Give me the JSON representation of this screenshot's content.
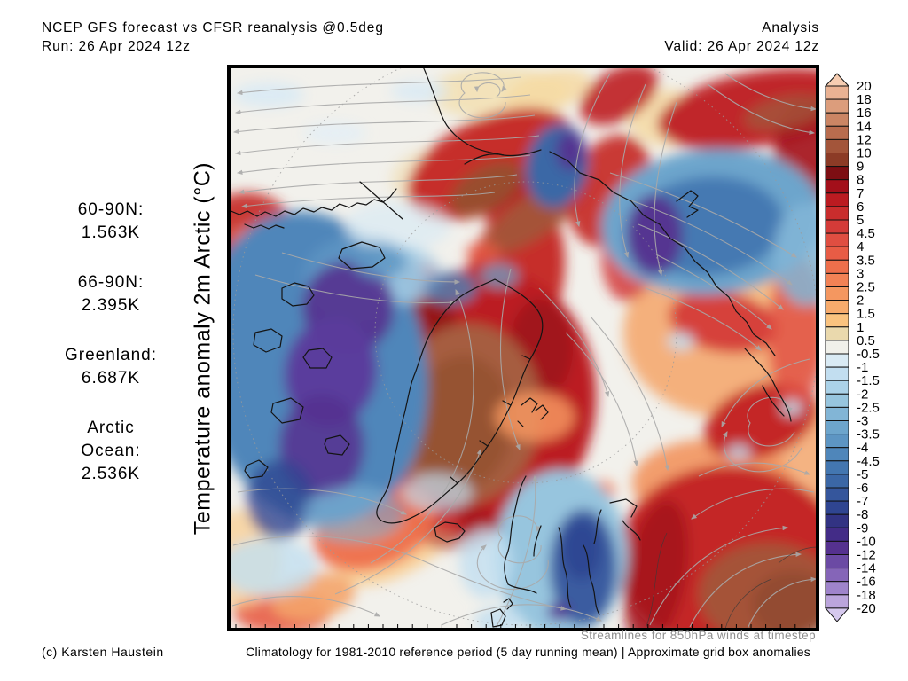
{
  "header": {
    "title": "NCEP GFS forecast vs CFSR reanalysis @0.5deg",
    "run": "Run: 26 Apr 2024 12z",
    "mode": "Analysis",
    "valid": "Valid: 26 Apr 2024 12z"
  },
  "axis_label": "Temperature anomaly 2m Arctic (°C)",
  "stats": {
    "items": [
      {
        "lines": [
          "60-90N:",
          "1.563K"
        ]
      },
      {
        "lines": [
          "66-90N:",
          "2.395K"
        ]
      },
      {
        "lines": [
          "Greenland:",
          "6.687K"
        ]
      },
      {
        "lines": [
          "Arctic",
          "Ocean:",
          "2.536K"
        ]
      }
    ]
  },
  "footer": {
    "streamlines_note": "Streamlines for 850hPa winds at timestep",
    "credit": "(c) Karsten Haustein",
    "climatology_note": "Climatology for 1981-2010 reference period (5 day running mean) | Approximate grid box anomalies"
  },
  "colorbar": {
    "labels": [
      "20",
      "18",
      "16",
      "14",
      "12",
      "10",
      "9",
      "8",
      "7",
      "6",
      "5",
      "4.5",
      "4",
      "3.5",
      "3",
      "2.5",
      "2",
      "1.5",
      "1",
      "0.5",
      "-0.5",
      "-1",
      "-1.5",
      "-2",
      "-2.5",
      "-3",
      "-3.5",
      "-4",
      "-4.5",
      "-5",
      "-6",
      "-7",
      "-8",
      "-9",
      "-10",
      "-12",
      "-14",
      "-16",
      "-18",
      "-20"
    ],
    "segment_colors": [
      "#eab293",
      "#dc9d7c",
      "#cb8564",
      "#b96c4e",
      "#a3553a",
      "#8c3b26",
      "#7d0e13",
      "#a30f1a",
      "#bb1b21",
      "#c92d2d",
      "#d43b38",
      "#e04e41",
      "#e85c45",
      "#ee6f4b",
      "#f28255",
      "#f49760",
      "#f7ab6c",
      "#fac37f",
      "#ead9ad",
      "#f0f0ea",
      "#d9eaf4",
      "#c2def0",
      "#abd2e8",
      "#97c5de",
      "#82b5d6",
      "#6da5cc",
      "#5d95c3",
      "#4f86ba",
      "#4376b0",
      "#3b67a6",
      "#35569c",
      "#2f4591",
      "#323383",
      "#432c87",
      "#55318f",
      "#6b4aa4",
      "#8565b8",
      "#9f84cb",
      "#bba5dc"
    ],
    "top_triangle_color": "#f6cdb2",
    "bottom_triangle_color": "#d6c9ee",
    "outline_color": "#111111"
  },
  "chart_data": {
    "type": "heatmap",
    "title": "Temperature anomaly 2m Arctic (°C)",
    "scale_values_degC": [
      20,
      18,
      16,
      14,
      12,
      10,
      9,
      8,
      7,
      6,
      5,
      4.5,
      4,
      3.5,
      3,
      2.5,
      2,
      1.5,
      1,
      0.5,
      -0.5,
      -1,
      -1.5,
      -2,
      -2.5,
      -3,
      -3.5,
      -4,
      -4.5,
      -5,
      -6,
      -7,
      -8,
      -9,
      -10,
      -12,
      -14,
      -16,
      -18,
      -20
    ],
    "region_mean_anomalies_K": {
      "60-90N": 1.563,
      "66-90N": 2.395,
      "Greenland": 6.687,
      "Arctic Ocean": 2.536
    }
  },
  "map": {
    "base_color": "#f2f1ec",
    "streamline_color": "#a9a9a9",
    "coast_color": "#141414",
    "blobs": [
      [
        305,
        30,
        80,
        30,
        0,
        "#f2dfae",
        0.8
      ],
      [
        245,
        128,
        62,
        38,
        0,
        "#f0dcae",
        0.6
      ],
      [
        360,
        28,
        50,
        22,
        -15,
        "#f6d9a2",
        0.85
      ],
      [
        495,
        58,
        45,
        32,
        0,
        "#f5d9a2",
        0.85
      ],
      [
        560,
        300,
        115,
        95,
        0,
        "#f4a870",
        0.9
      ],
      [
        612,
        240,
        58,
        38,
        0,
        "#f7c489",
        0.8
      ],
      [
        200,
        520,
        95,
        45,
        -35,
        "#f8cd92",
        0.9
      ],
      [
        60,
        615,
        55,
        25,
        0,
        "#e85c45",
        0.9
      ],
      [
        95,
        598,
        48,
        26,
        -10,
        "#f4a46a",
        0.9
      ],
      [
        15,
        555,
        45,
        55,
        0,
        "#f8cd92",
        0.75
      ],
      [
        648,
        450,
        40,
        80,
        0,
        "#f4a870",
        0.85
      ],
      [
        545,
        470,
        90,
        50,
        0,
        "#f2945e",
        0.9
      ],
      [
        300,
        470,
        40,
        45,
        0,
        "#f4a870",
        0.8
      ],
      [
        295,
        110,
        100,
        52,
        -25,
        "#c62f2a",
        1
      ],
      [
        345,
        152,
        60,
        33,
        -30,
        "#b51b20",
        0.9
      ],
      [
        440,
        32,
        48,
        28,
        -30,
        "#c0272a",
        0.95
      ],
      [
        597,
        48,
        115,
        42,
        -10,
        "#c0272a",
        1
      ],
      [
        655,
        95,
        40,
        60,
        0,
        "#a30f1a",
        0.9
      ],
      [
        628,
        52,
        48,
        18,
        -12,
        "#a3553a",
        0.85
      ],
      [
        320,
        250,
        55,
        100,
        15,
        "#c62f2a",
        1
      ],
      [
        350,
        165,
        75,
        24,
        -35,
        "#a3553a",
        0.95
      ],
      [
        290,
        138,
        45,
        24,
        -30,
        "#93512f",
        0.9
      ],
      [
        430,
        140,
        45,
        65,
        20,
        "#c62f2a",
        0.95
      ],
      [
        452,
        205,
        32,
        60,
        5,
        "#d43b38",
        0.85
      ],
      [
        282,
        378,
        132,
        152,
        8,
        "#bb1b21",
        1
      ],
      [
        215,
        298,
        42,
        58,
        0,
        "#7d0e13",
        0.6
      ],
      [
        352,
        318,
        36,
        56,
        0,
        "#8c1016",
        0.55
      ],
      [
        255,
        518,
        48,
        28,
        0,
        "#991015",
        0.5
      ],
      [
        268,
        392,
        84,
        102,
        5,
        "#a65d41",
        1
      ],
      [
        262,
        402,
        58,
        76,
        5,
        "#93512f",
        0.85
      ],
      [
        558,
        288,
        62,
        34,
        10,
        "#d43b38",
        0.95
      ],
      [
        600,
        400,
        66,
        40,
        -20,
        "#c42828",
        1
      ],
      [
        640,
        300,
        32,
        85,
        0,
        "#e04e41",
        0.8
      ],
      [
        565,
        555,
        128,
        105,
        0,
        "#c42828",
        1
      ],
      [
        482,
        572,
        34,
        85,
        10,
        "#a30f1a",
        0.85
      ],
      [
        608,
        595,
        78,
        58,
        0,
        "#a3553a",
        0.95
      ],
      [
        636,
        607,
        46,
        38,
        0,
        "#8f4a2f",
        0.85
      ],
      [
        165,
        520,
        72,
        45,
        -20,
        "#ee6f4b",
        0.95
      ],
      [
        175,
        500,
        25,
        17,
        0,
        "#e04e41",
        0.85
      ],
      [
        245,
        515,
        16,
        10,
        0,
        "#d43b38",
        0.85
      ],
      [
        20,
        190,
        55,
        48,
        0,
        "#c62f2a",
        0.95
      ],
      [
        6,
        330,
        26,
        45,
        0,
        "#c62f2a",
        0.8
      ],
      [
        120,
        205,
        26,
        17,
        0,
        "#e04e41",
        0.85
      ],
      [
        215,
        235,
        23,
        15,
        0,
        "#d43b38",
        0.8
      ],
      [
        287,
        210,
        20,
        13,
        0,
        "#e85c45",
        0.75
      ],
      [
        85,
        198,
        85,
        20,
        5,
        "#ee6f4b",
        0.85
      ],
      [
        420,
        478,
        16,
        11,
        0,
        "#f28255",
        0.9
      ],
      [
        345,
        395,
        45,
        28,
        0,
        "#f49760",
        0.85
      ],
      [
        95,
        340,
        128,
        178,
        -10,
        "#4f86ba",
        1
      ],
      [
        152,
        238,
        68,
        48,
        0,
        "#5d95c3",
        0.9
      ],
      [
        190,
        180,
        60,
        28,
        0,
        "#d9eaf4",
        0.7
      ],
      [
        200,
        235,
        40,
        32,
        0,
        "#abd2e8",
        0.75
      ],
      [
        135,
        272,
        52,
        52,
        -20,
        "#55318f",
        0.9
      ],
      [
        115,
        345,
        52,
        62,
        10,
        "#5b3a9b",
        0.95
      ],
      [
        105,
        428,
        48,
        58,
        0,
        "#55318f",
        0.85
      ],
      [
        58,
        488,
        38,
        45,
        0,
        "#2f4591",
        0.8
      ],
      [
        140,
        505,
        58,
        32,
        0,
        "#82b5d6",
        0.6
      ],
      [
        170,
        220,
        30,
        19,
        0,
        "#5d95c3",
        0.85
      ],
      [
        250,
        250,
        30,
        19,
        0,
        "#4f86ba",
        0.8
      ],
      [
        305,
        236,
        22,
        14,
        0,
        "#6da5cc",
        0.75
      ],
      [
        370,
        112,
        35,
        48,
        10,
        "#3b67a6",
        1
      ],
      [
        385,
        95,
        16,
        22,
        0,
        "#55318f",
        0.9
      ],
      [
        545,
        175,
        125,
        82,
        -5,
        "#6da5cc",
        1
      ],
      [
        540,
        180,
        86,
        56,
        -5,
        "#4376b0",
        0.95
      ],
      [
        480,
        190,
        32,
        46,
        0,
        "#55318f",
        0.95
      ],
      [
        652,
        212,
        38,
        58,
        0,
        "#82b5d6",
        0.85
      ],
      [
        375,
        550,
        75,
        95,
        0,
        "#97c5de",
        1
      ],
      [
        400,
        565,
        38,
        66,
        0,
        "#35569c",
        0.95
      ],
      [
        398,
        545,
        22,
        34,
        0,
        "#2f4591",
        0.9
      ],
      [
        372,
        615,
        13,
        10,
        0,
        "#55318f",
        0.9
      ],
      [
        305,
        625,
        28,
        15,
        0,
        "#c2def0",
        0.85
      ],
      [
        290,
        560,
        30,
        40,
        0,
        "#c2def0",
        0.8
      ],
      [
        45,
        565,
        55,
        33,
        0,
        "#c2def0",
        0.8
      ],
      [
        235,
        480,
        40,
        22,
        0,
        "#c2def0",
        0.7
      ],
      [
        45,
        32,
        40,
        14,
        0,
        "#d9eaf4",
        0.9
      ],
      [
        215,
        28,
        32,
        12,
        0,
        "#d9eaf4",
        0.85
      ],
      [
        120,
        75,
        35,
        12,
        0,
        "#e2eef6",
        0.8
      ],
      [
        510,
        310,
        15,
        10,
        0,
        "#c2def0",
        0.85
      ],
      [
        635,
        385,
        12,
        9,
        0,
        "#c2def0",
        0.85
      ],
      [
        575,
        435,
        14,
        9,
        0,
        "#c2def0",
        0.8
      ]
    ]
  }
}
